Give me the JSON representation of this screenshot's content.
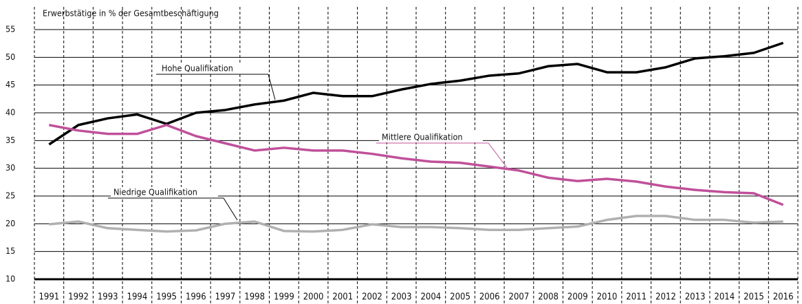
{
  "chart_data": {
    "type": "line",
    "y_label": "Erwerbstätige in % der Gesamtbeschäftigung",
    "categories": [
      "1991",
      "1992",
      "1993",
      "1994",
      "1995",
      "1996",
      "1997",
      "1998",
      "1999",
      "2000",
      "2001",
      "2002",
      "2003",
      "2004",
      "2005",
      "2006",
      "2007",
      "2008",
      "2009",
      "2010",
      "2011",
      "2012",
      "2013",
      "2014",
      "2015",
      "2016"
    ],
    "series": [
      {
        "name": "Hohe Qualifikation",
        "color": "#000000",
        "values": [
          34.3,
          37.8,
          39.0,
          39.7,
          38.0,
          40.0,
          40.5,
          41.5,
          42.2,
          43.6,
          43.0,
          43.0,
          44.2,
          45.2,
          45.8,
          46.7,
          47.1,
          48.4,
          48.8,
          47.3,
          47.3,
          48.2,
          49.8,
          50.2,
          50.8,
          52.6
        ]
      },
      {
        "name": "Mittlere Qualifikation",
        "color": "#c0509a",
        "values": [
          37.8,
          36.8,
          36.2,
          36.2,
          37.8,
          35.8,
          34.5,
          33.2,
          33.7,
          33.2,
          33.2,
          32.6,
          31.8,
          31.2,
          31.0,
          30.3,
          29.6,
          28.3,
          27.7,
          28.1,
          27.6,
          26.7,
          26.1,
          25.7,
          25.5,
          23.4
        ]
      },
      {
        "name": "Niedrige Qualifikation",
        "color": "#b0b0b0",
        "values": [
          19.9,
          20.4,
          19.2,
          18.9,
          18.6,
          18.8,
          20.0,
          20.4,
          18.7,
          18.6,
          18.9,
          19.9,
          19.4,
          19.4,
          19.2,
          18.9,
          18.9,
          19.2,
          19.5,
          20.7,
          21.4,
          21.4,
          20.7,
          20.7,
          20.2,
          20.4
        ]
      }
    ],
    "ylim": [
      10,
      55
    ],
    "yticks": [
      10,
      15,
      20,
      25,
      30,
      35,
      40,
      45,
      50,
      55
    ],
    "grid": true
  }
}
